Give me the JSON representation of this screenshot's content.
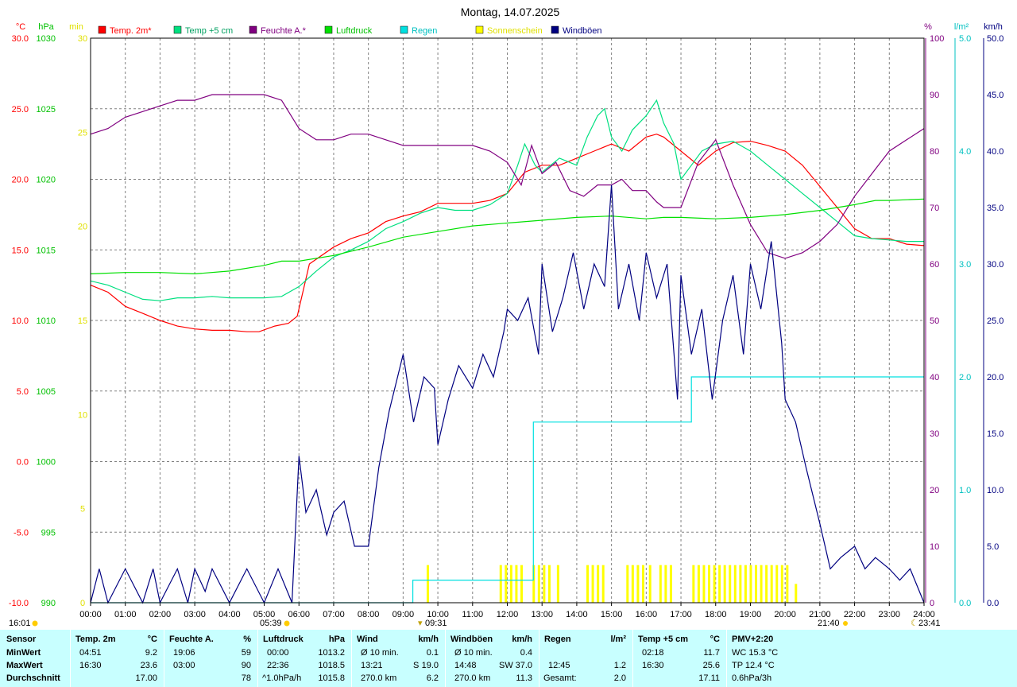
{
  "chart_data": {
    "type": "line",
    "title": "Montag, 14.07.2025",
    "x_hours": [
      "00:00",
      "01:00",
      "02:00",
      "03:00",
      "04:00",
      "05:00",
      "06:00",
      "07:00",
      "08:00",
      "09:00",
      "10:00",
      "11:00",
      "12:00",
      "13:00",
      "14:00",
      "15:00",
      "16:00",
      "17:00",
      "18:00",
      "19:00",
      "20:00",
      "21:00",
      "22:00",
      "23:00",
      "24:00"
    ],
    "xlim": [
      0,
      24
    ],
    "axes": {
      "temp_c": {
        "unit": "°C",
        "range": [
          -10,
          30
        ],
        "color": "#ff0000",
        "ticks": [
          "-10.0",
          "-5.0",
          "0.0",
          "5.0",
          "10.0",
          "15.0",
          "20.0",
          "25.0",
          "30.0"
        ]
      },
      "pressure_hpa": {
        "unit": "hPa",
        "range": [
          990,
          1030
        ],
        "color": "#00c000",
        "ticks": [
          "990",
          "995",
          "1000",
          "1005",
          "1010",
          "1015",
          "1020",
          "1025",
          "1030"
        ]
      },
      "sunshine_min": {
        "unit": "min",
        "range": [
          0,
          30
        ],
        "color": "#ffff00",
        "ticks": [
          "0",
          "5",
          "10",
          "15",
          "20",
          "25",
          "30"
        ]
      },
      "humidity_pct": {
        "unit": "%",
        "range": [
          0,
          100
        ],
        "color": "#800080",
        "ticks": [
          "0",
          "10",
          "20",
          "30",
          "40",
          "50",
          "60",
          "70",
          "80",
          "90",
          "100"
        ]
      },
      "rain_lm2": {
        "unit": "l/m²",
        "range": [
          0,
          5
        ],
        "color": "#00c0c0",
        "ticks": [
          "0.0",
          "1.0",
          "2.0",
          "3.0",
          "4.0",
          "5.0"
        ]
      },
      "wind_kmh": {
        "unit": "km/h",
        "range": [
          0,
          50
        ],
        "color": "#000080",
        "ticks": [
          "0.0",
          "5.0",
          "10.0",
          "15.0",
          "20.0",
          "25.0",
          "30.0",
          "35.0",
          "40.0",
          "45.0",
          "50.0"
        ]
      }
    },
    "legend": [
      "Temp. 2m*",
      "Temp +5 cm",
      "Feuchte A.*",
      "Luftdruck",
      "Regen",
      "Sonnenschein",
      "Windböen"
    ],
    "series": [
      {
        "name": "Temp. 2m*",
        "color": "#ff0000",
        "axis": "temp_c",
        "x": [
          0,
          0.5,
          1,
          1.5,
          2,
          2.5,
          3,
          3.5,
          4,
          4.5,
          4.85,
          5.3,
          5.7,
          5.95,
          6.3,
          7,
          7.5,
          8,
          8.5,
          9,
          9.5,
          10,
          10.5,
          11,
          11.5,
          12,
          12.5,
          13,
          13.5,
          14,
          14.5,
          15,
          15.5,
          16,
          16.3,
          16.5,
          17,
          17.5,
          18,
          18.5,
          19,
          19.5,
          20,
          20.5,
          21,
          21.5,
          22,
          22.5,
          23,
          23.5,
          24
        ],
        "y": [
          12.5,
          12,
          11,
          10.5,
          10,
          9.6,
          9.4,
          9.3,
          9.3,
          9.2,
          9.2,
          9.6,
          9.8,
          10.3,
          14,
          15.2,
          15.8,
          16.2,
          17,
          17.4,
          17.7,
          18.3,
          18.3,
          18.3,
          18.5,
          19,
          20.5,
          21,
          21,
          21.5,
          22,
          22.5,
          22,
          23,
          23.2,
          23,
          22,
          21,
          22,
          22.6,
          22.7,
          22.4,
          22,
          21,
          19.5,
          18,
          16.5,
          15.8,
          15.8,
          15.4,
          15.3
        ]
      },
      {
        "name": "Temp +5 cm",
        "color": "#00e080",
        "axis": "temp_c",
        "x": [
          0,
          0.5,
          1,
          1.5,
          2,
          2.5,
          3,
          3.5,
          4,
          4.5,
          5,
          5.5,
          6,
          6.5,
          7,
          7.5,
          8,
          8.5,
          9,
          9.5,
          10,
          10.5,
          11,
          11.5,
          12,
          12.3,
          12.5,
          12.8,
          13,
          13.5,
          14,
          14.3,
          14.6,
          14.8,
          15,
          15.3,
          15.6,
          16,
          16.3,
          16.5,
          16.8,
          17,
          17.3,
          17.6,
          18,
          18.5,
          19,
          19.5,
          20,
          20.5,
          21,
          21.5,
          22,
          22.5,
          23,
          23.5,
          24
        ],
        "y": [
          12.8,
          12.5,
          12,
          11.5,
          11.4,
          11.6,
          11.6,
          11.7,
          11.6,
          11.6,
          11.6,
          11.7,
          12.4,
          13.5,
          14.5,
          15,
          15.6,
          16.5,
          17,
          17.6,
          18,
          17.8,
          17.8,
          18.2,
          19,
          21,
          22.5,
          21,
          20.5,
          21.5,
          21,
          23,
          24.5,
          25,
          23,
          22,
          23.5,
          24.5,
          25.6,
          24,
          22.5,
          20,
          21,
          22,
          22.5,
          22.7,
          22,
          21,
          20,
          19,
          18,
          17,
          16,
          15.8,
          15.7,
          15.6,
          15.6
        ]
      },
      {
        "name": "Feuchte A.*",
        "color": "#800080",
        "axis": "humidity_pct",
        "x": [
          0,
          0.5,
          1,
          1.5,
          2,
          2.5,
          3,
          3.5,
          4,
          4.5,
          5,
          5.5,
          6,
          6.5,
          7,
          7.5,
          8,
          8.5,
          9,
          9.5,
          10,
          10.5,
          11,
          11.5,
          12,
          12.4,
          12.7,
          13,
          13.4,
          13.8,
          14.2,
          14.6,
          15,
          15.3,
          15.6,
          16,
          16.3,
          16.5,
          17,
          17.5,
          18,
          18.5,
          19,
          19.5,
          20,
          20.5,
          21,
          21.5,
          22,
          22.5,
          23,
          23.5,
          24
        ],
        "y": [
          83,
          84,
          86,
          87,
          88,
          89,
          89,
          90,
          90,
          90,
          90,
          89,
          84,
          82,
          82,
          83,
          83,
          82,
          81,
          81,
          81,
          81,
          81,
          80,
          78,
          74,
          81,
          76,
          78,
          73,
          72,
          74,
          74,
          75,
          73,
          73,
          71,
          70,
          70,
          78,
          82,
          74,
          67,
          62,
          61,
          62,
          64,
          67,
          72,
          76,
          80,
          82,
          84
        ]
      },
      {
        "name": "Luftdruck",
        "color": "#00e000",
        "axis": "pressure_hpa",
        "x": [
          0,
          1,
          2,
          3,
          4,
          5,
          5.5,
          6,
          7,
          8,
          9,
          10,
          11,
          12,
          13,
          14,
          15,
          16,
          16.5,
          17,
          18,
          19,
          20,
          21,
          22,
          22.6,
          23,
          24
        ],
        "y": [
          1013.3,
          1013.4,
          1013.4,
          1013.3,
          1013.5,
          1013.9,
          1014.2,
          1014.2,
          1014.6,
          1015.2,
          1015.9,
          1016.3,
          1016.7,
          1016.9,
          1017.1,
          1017.3,
          1017.4,
          1017.2,
          1017.3,
          1017.3,
          1017.2,
          1017.3,
          1017.5,
          1017.8,
          1018.2,
          1018.5,
          1018.5,
          1018.6
        ]
      },
      {
        "name": "Regen",
        "color": "#00e0e0",
        "axis": "rain_lm2",
        "step": true,
        "x": [
          0,
          9.27,
          9.28,
          12.7,
          12.75,
          17.25,
          17.3,
          24
        ],
        "y": [
          0,
          0,
          0.2,
          0.2,
          1.6,
          1.6,
          2.0,
          2.0
        ]
      },
      {
        "name": "Windböen",
        "color": "#000080",
        "axis": "wind_kmh",
        "x": [
          0,
          0.25,
          0.5,
          1,
          1.5,
          1.8,
          2,
          2.5,
          2.8,
          3,
          3.3,
          3.5,
          4,
          4.5,
          5,
          5.4,
          5.8,
          6,
          6.2,
          6.5,
          6.8,
          7,
          7.3,
          7.6,
          8,
          8.3,
          8.6,
          9,
          9.3,
          9.6,
          9.9,
          10,
          10.3,
          10.6,
          11,
          11.3,
          11.6,
          11.9,
          12,
          12.3,
          12.6,
          12.9,
          13,
          13.3,
          13.6,
          13.9,
          14.2,
          14.5,
          14.8,
          15,
          15.2,
          15.5,
          15.8,
          16,
          16.3,
          16.6,
          16.9,
          17,
          17.3,
          17.6,
          17.9,
          18.2,
          18.5,
          18.8,
          19,
          19.3,
          19.6,
          19.9,
          20,
          20.3,
          20.6,
          21,
          21.3,
          21.6,
          22,
          22.3,
          22.6,
          23,
          23.3,
          23.6,
          24
        ],
        "y": [
          0,
          3,
          0,
          3,
          0,
          3,
          0,
          3,
          0,
          3,
          1,
          3,
          0,
          3,
          0,
          3,
          0,
          13,
          8,
          10,
          6,
          8,
          9,
          5,
          5,
          12,
          17,
          22,
          16,
          20,
          19,
          14,
          18,
          21,
          19,
          22,
          20,
          24,
          26,
          25,
          27,
          22,
          30,
          24,
          27,
          31,
          26,
          30,
          28,
          37,
          26,
          30,
          25,
          31,
          27,
          30,
          18,
          29,
          22,
          26,
          18,
          25,
          29,
          22,
          30,
          26,
          32,
          23,
          18,
          16,
          12,
          7,
          3,
          4,
          5,
          3,
          4,
          3,
          2,
          3,
          0
        ]
      }
    ],
    "sunshine": {
      "name": "Sonnenschein",
      "color": "#ffff00",
      "axis": "sunshine_min",
      "x": [
        9.7,
        11.8,
        11.95,
        12.1,
        12.25,
        12.4,
        12.75,
        12.9,
        13.05,
        13.2,
        13.45,
        14.3,
        14.45,
        14.6,
        14.75,
        15.45,
        15.6,
        15.75,
        15.9,
        16.1,
        16.4,
        16.55,
        16.7,
        17.35,
        17.5,
        17.65,
        17.8,
        17.95,
        18.1,
        18.25,
        18.4,
        18.55,
        18.7,
        18.85,
        19,
        19.15,
        19.3,
        19.45,
        19.6,
        19.75,
        19.9,
        20.05,
        20.3
      ],
      "y": [
        2,
        2,
        2,
        2,
        2,
        2,
        2,
        2,
        2,
        2,
        2,
        2,
        2,
        2,
        2,
        2,
        2,
        2,
        2,
        2,
        2,
        2,
        2,
        2,
        2,
        2,
        2,
        2,
        2,
        2,
        2,
        2,
        2,
        2,
        2,
        2,
        2,
        2,
        2,
        2,
        2,
        2,
        1
      ]
    },
    "annotations": {
      "left_time": "16:01",
      "sunrise": "05:39",
      "sun_low": "09:31",
      "sunset": "21:40",
      "right_time": "23:41"
    }
  },
  "table": {
    "row_labels": {
      "sensor": "Sensor",
      "min": "MinWert",
      "max": "MaxWert",
      "avg": "Durchschnitt"
    },
    "temp2m": {
      "title": "Temp. 2m",
      "unit": "°C",
      "min_time": "04:51",
      "min": "9.2",
      "max_time": "16:30",
      "max": "23.6",
      "avg": "17.00"
    },
    "humidity": {
      "title": "Feuchte A.",
      "unit": "%",
      "min_time": "19:06",
      "min": "59",
      "max_time": "03:00",
      "max": "90",
      "avg": "78"
    },
    "pressure": {
      "title": "Luftdruck",
      "unit": "hPa",
      "min_time": "00:00",
      "min": "1013.2",
      "max_time": "22:36",
      "max": "1018.5",
      "trend": "^1.0hPa/h",
      "avg": "1015.8"
    },
    "wind": {
      "title": "Wind",
      "unit": "km/h",
      "min_label": "Ø 10 min.",
      "min": "0.1",
      "max_time": "13:21",
      "max_dir": "S",
      "max": "19.0",
      "avg_dir": "270.0 km",
      "avg": "6.2"
    },
    "gusts": {
      "title": "Windböen",
      "unit": "km/h",
      "min_label": "Ø 10 min.",
      "min": "0.4",
      "max_time": "14:48",
      "max_dir": "SW",
      "max": "37.0",
      "avg_dir": "270.0 km",
      "avg": "11.3"
    },
    "rain": {
      "title": "Regen",
      "unit": "l/m²",
      "max_time": "12:45",
      "max": "1.2",
      "total_label": "Gesamt:",
      "total": "2.0"
    },
    "temp5cm": {
      "title": "Temp +5 cm",
      "unit": "°C",
      "min_time": "02:18",
      "min": "11.7",
      "max_time": "16:30",
      "max": "25.6",
      "avg": "17.11"
    },
    "pmv": {
      "title": "PMV+2:20",
      "wc": "WC 15.3 °C",
      "tp": "TP 12.4 °C",
      "trend": "0.6hPa/3h"
    }
  }
}
